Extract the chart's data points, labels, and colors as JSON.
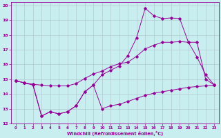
{
  "background_color": "#c8eef0",
  "line_color": "#990099",
  "xlim": [
    -0.5,
    23.5
  ],
  "ylim": [
    12,
    20.2
  ],
  "xticks": [
    0,
    1,
    2,
    3,
    4,
    5,
    6,
    7,
    8,
    9,
    10,
    11,
    12,
    13,
    14,
    15,
    16,
    17,
    18,
    19,
    20,
    21,
    22,
    23
  ],
  "yticks": [
    12,
    13,
    14,
    15,
    16,
    17,
    18,
    19,
    20
  ],
  "xlabel": "Windchill (Refroidissement éolien,°C)",
  "grid_color": "#b0c8cc",
  "lines": [
    {
      "x": [
        0,
        1,
        2,
        3,
        4,
        5,
        6,
        7,
        8,
        9,
        10,
        11,
        12,
        13,
        14,
        15,
        16,
        17,
        18,
        19,
        20,
        21,
        22,
        23
      ],
      "y": [
        14.9,
        14.75,
        14.6,
        12.5,
        12.8,
        12.65,
        12.8,
        13.2,
        14.15,
        14.6,
        15.3,
        15.6,
        15.9,
        16.6,
        17.8,
        19.8,
        19.3,
        19.1,
        19.15,
        19.1,
        17.5,
        16.5,
        15.3,
        14.6
      ]
    },
    {
      "x": [
        0,
        1,
        2,
        3,
        4,
        5,
        6,
        7,
        8,
        9,
        10,
        11,
        12,
        13,
        14,
        15,
        16,
        17,
        18,
        19,
        20,
        21,
        22,
        23
      ],
      "y": [
        14.9,
        14.75,
        14.65,
        14.6,
        14.55,
        14.55,
        14.55,
        14.7,
        15.05,
        15.35,
        15.55,
        15.85,
        16.05,
        16.15,
        16.55,
        17.05,
        17.3,
        17.5,
        17.5,
        17.55,
        17.5,
        17.5,
        15.0,
        14.6
      ]
    },
    {
      "x": [
        0,
        1,
        2,
        3,
        4,
        5,
        6,
        7,
        8,
        9,
        10,
        11,
        12,
        13,
        14,
        15,
        16,
        17,
        18,
        19,
        20,
        21,
        22,
        23
      ],
      "y": [
        14.9,
        14.75,
        14.65,
        12.5,
        12.8,
        12.65,
        12.8,
        13.2,
        14.15,
        14.6,
        13.0,
        13.2,
        13.3,
        13.5,
        13.7,
        13.9,
        14.05,
        14.15,
        14.25,
        14.35,
        14.45,
        14.5,
        14.55,
        14.6
      ]
    }
  ]
}
